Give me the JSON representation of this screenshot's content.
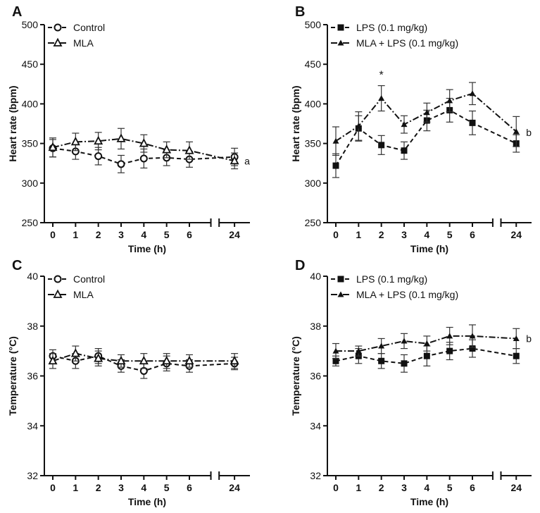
{
  "chart_data": [
    {
      "panel": "A",
      "type": "line",
      "x": [
        0,
        1,
        2,
        3,
        4,
        5,
        6,
        24
      ],
      "xtick_labels": [
        "0",
        "1",
        "2",
        "3",
        "4",
        "5",
        "6",
        "24"
      ],
      "xlabel": "Time (h)",
      "ylabel": "Heart rate (bpm)",
      "ylim": [
        250,
        500
      ],
      "yticks": [
        250,
        300,
        350,
        400,
        450,
        500
      ],
      "legend": "top-left",
      "annotation": {
        "text": "a",
        "x": 24,
        "y": 328
      },
      "series": [
        {
          "name": "Control",
          "marker": "open-circle",
          "dash": "dash",
          "values": [
            344,
            340,
            334,
            324,
            331,
            332,
            330,
            333
          ],
          "errors": [
            11,
            10,
            11,
            11,
            12,
            10,
            10,
            11
          ]
        },
        {
          "name": "MLA",
          "marker": "open-triangle",
          "dash": "dashdot",
          "values": [
            345,
            352,
            353,
            356,
            350,
            342,
            341,
            328
          ],
          "errors": [
            12,
            11,
            11,
            13,
            11,
            10,
            11,
            10
          ]
        }
      ]
    },
    {
      "panel": "B",
      "type": "line",
      "x": [
        0,
        1,
        2,
        3,
        4,
        5,
        6,
        24
      ],
      "xtick_labels": [
        "0",
        "1",
        "2",
        "3",
        "4",
        "5",
        "6",
        "24"
      ],
      "xlabel": "Time (h)",
      "ylabel": "Heart rate (bpm)",
      "ylim": [
        250,
        500
      ],
      "yticks": [
        250,
        300,
        350,
        400,
        450,
        500
      ],
      "legend": "top-left",
      "annotation": {
        "text": "b",
        "x": 24,
        "y": 364
      },
      "star": {
        "text": "*",
        "x": 2,
        "y": 432
      },
      "series": [
        {
          "name": "LPS (0.1 mg/kg)",
          "marker": "filled-square",
          "dash": "dash",
          "values": [
            322,
            369,
            348,
            341,
            379,
            392,
            376,
            350
          ],
          "errors": [
            15,
            16,
            12,
            11,
            13,
            15,
            15,
            11
          ]
        },
        {
          "name": "MLA + LPS (0.1 mg/kg)",
          "marker": "filled-triangle",
          "dash": "dashdot",
          "values": [
            353,
            372,
            407,
            374,
            389,
            404,
            413,
            365
          ],
          "errors": [
            18,
            18,
            16,
            11,
            12,
            14,
            14,
            19
          ]
        }
      ]
    },
    {
      "panel": "C",
      "type": "line",
      "x": [
        0,
        1,
        2,
        3,
        4,
        5,
        6,
        24
      ],
      "xtick_labels": [
        "0",
        "1",
        "2",
        "3",
        "4",
        "5",
        "6",
        "24"
      ],
      "xlabel": "Time (h)",
      "ylabel": "Temperature (°C)",
      "ylim": [
        32,
        40
      ],
      "yticks": [
        32,
        34,
        36,
        38,
        40
      ],
      "legend": "top-left",
      "series": [
        {
          "name": "Control",
          "marker": "open-circle",
          "dash": "dash",
          "values": [
            36.8,
            36.6,
            36.8,
            36.4,
            36.2,
            36.5,
            36.4,
            36.5
          ],
          "errors": [
            0.25,
            0.3,
            0.3,
            0.25,
            0.3,
            0.3,
            0.25,
            0.25
          ]
        },
        {
          "name": "MLA",
          "marker": "open-triangle",
          "dash": "dashdot",
          "values": [
            36.6,
            36.9,
            36.7,
            36.6,
            36.6,
            36.6,
            36.6,
            36.6
          ],
          "errors": [
            0.3,
            0.3,
            0.3,
            0.25,
            0.3,
            0.3,
            0.25,
            0.3
          ]
        }
      ]
    },
    {
      "panel": "D",
      "type": "line",
      "x": [
        0,
        1,
        2,
        3,
        4,
        5,
        6,
        24
      ],
      "xtick_labels": [
        "0",
        "1",
        "2",
        "3",
        "4",
        "5",
        "6",
        "24"
      ],
      "xlabel": "Time (h)",
      "ylabel": "Temperature (°C)",
      "ylim": [
        32,
        40
      ],
      "yticks": [
        32,
        34,
        36,
        38,
        40
      ],
      "legend": "top-left",
      "annotation": {
        "text": "b",
        "x": 24,
        "y": 37.5
      },
      "series": [
        {
          "name": "LPS (0.1 mg/kg)",
          "marker": "filled-square",
          "dash": "dash",
          "values": [
            36.6,
            36.8,
            36.6,
            36.5,
            36.8,
            37.0,
            37.1,
            36.8
          ],
          "errors": [
            0.2,
            0.3,
            0.3,
            0.35,
            0.4,
            0.35,
            0.35,
            0.3
          ]
        },
        {
          "name": "MLA + LPS (0.1 mg/kg)",
          "marker": "filled-triangle",
          "dash": "dashdot",
          "values": [
            37.0,
            37.0,
            37.2,
            37.4,
            37.3,
            37.6,
            37.6,
            37.5
          ],
          "errors": [
            0.3,
            0.2,
            0.3,
            0.3,
            0.3,
            0.35,
            0.45,
            0.4
          ]
        }
      ]
    }
  ]
}
